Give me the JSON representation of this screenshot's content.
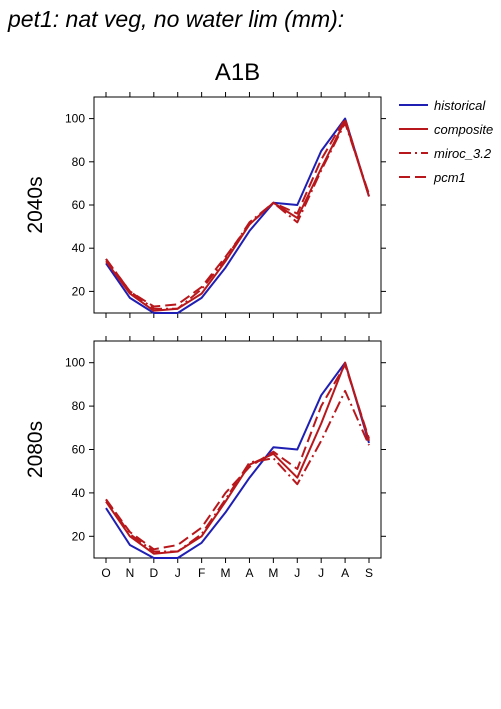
{
  "title": "pet1: nat veg, no water lim (mm):",
  "colors": {
    "historical": "#1f1fb4",
    "scenario": "#b8181c"
  },
  "chart_data": {
    "type": "line",
    "scenario_title": "A1B",
    "categories": [
      "O",
      "N",
      "D",
      "J",
      "F",
      "M",
      "A",
      "M",
      "J",
      "J",
      "A",
      "S"
    ],
    "ylim": [
      10,
      110
    ],
    "yticks": [
      20,
      40,
      60,
      80,
      100
    ],
    "grid": false,
    "legend_position": "right",
    "legend": [
      {
        "name": "historical",
        "color": "#1f1fb4",
        "dash": "solid"
      },
      {
        "name": "composite",
        "color": "#b8181c",
        "dash": "solid"
      },
      {
        "name": "miroc_3.2",
        "color": "#b8181c",
        "dash": "dashdot"
      },
      {
        "name": "pcm1",
        "color": "#b8181c",
        "dash": "dash"
      }
    ],
    "panels": [
      {
        "label": "2040s",
        "series": [
          {
            "name": "historical",
            "values": [
              33,
              17,
              10,
              10,
              17,
              31,
              48,
              61,
              60,
              85,
              100,
              64
            ]
          },
          {
            "name": "composite",
            "values": [
              34,
              19,
              11,
              12,
              19,
              34,
              51,
              61,
              54,
              77,
              99,
              64
            ]
          },
          {
            "name": "miroc_3.2",
            "values": [
              35,
              20,
              12,
              12,
              21,
              35,
              52,
              61,
              52,
              76,
              98,
              65
            ]
          },
          {
            "name": "pcm1",
            "values": [
              35,
              20,
              13,
              14,
              22,
              36,
              51,
              61,
              56,
              81,
              100,
              64
            ]
          }
        ]
      },
      {
        "label": "2080s",
        "series": [
          {
            "name": "historical",
            "values": [
              33,
              16,
              10,
              10,
              17,
              31,
              47,
              61,
              60,
              85,
              100,
              63
            ]
          },
          {
            "name": "composite",
            "values": [
              36,
              20,
              12,
              13,
              20,
              36,
              53,
              58,
              47,
              72,
              100,
              64
            ]
          },
          {
            "name": "miroc_3.2",
            "values": [
              37,
              21,
              13,
              13,
              21,
              37,
              54,
              56,
              44,
              64,
              87,
              62
            ]
          },
          {
            "name": "pcm1",
            "values": [
              37,
              22,
              14,
              16,
              24,
              40,
              52,
              59,
              51,
              80,
              99,
              65
            ]
          }
        ]
      }
    ]
  }
}
